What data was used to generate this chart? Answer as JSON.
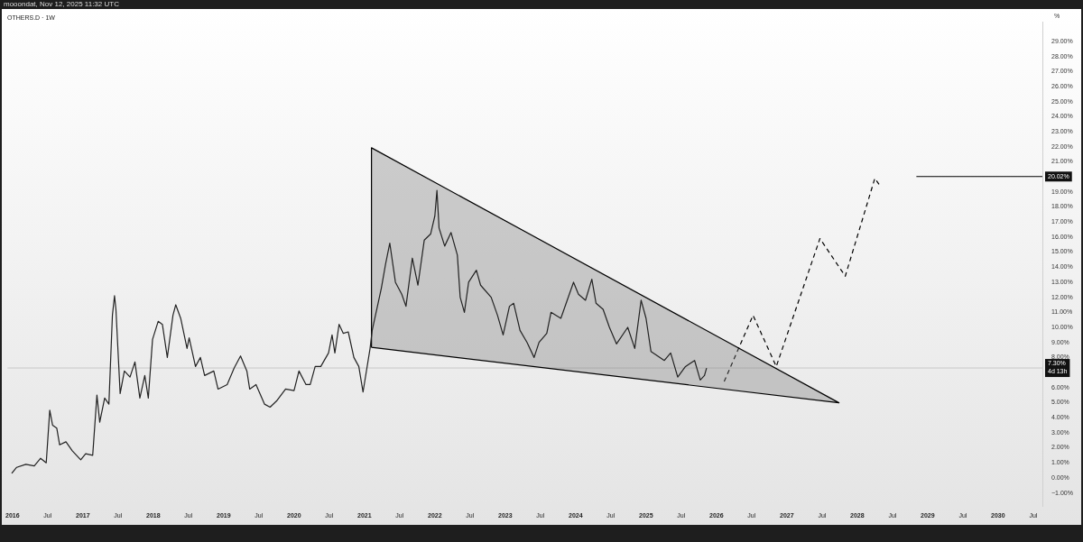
{
  "chart_data": {
    "type": "line",
    "title": "OTHERS.D · 1W",
    "ylabel": "%",
    "annotations": [
      "mooondat, Nov 12, 2025 11:32 UTC",
      {
        "text": "20.02%",
        "x": 2030.63,
        "y": 20.02
      }
    ],
    "xlim": [
      2015.93,
      2030.63
    ],
    "xticks": [
      {
        "value": 2016,
        "label": "2016"
      },
      {
        "value": 2016.5,
        "label": "Jul"
      },
      {
        "value": 2017,
        "label": "2017"
      },
      {
        "value": 2017.5,
        "label": "Jul"
      },
      {
        "value": 2018,
        "label": "2018"
      },
      {
        "value": 2018.5,
        "label": "Jul"
      },
      {
        "value": 2019,
        "label": "2019"
      },
      {
        "value": 2019.5,
        "label": "Jul"
      },
      {
        "value": 2020,
        "label": "2020"
      },
      {
        "value": 2020.5,
        "label": "Jul"
      },
      {
        "value": 2021,
        "label": "2021"
      },
      {
        "value": 2021.5,
        "label": "Jul"
      },
      {
        "value": 2022,
        "label": "2022"
      },
      {
        "value": 2022.5,
        "label": "Jul"
      },
      {
        "value": 2023,
        "label": "2023"
      },
      {
        "value": 2023.5,
        "label": "Jul"
      },
      {
        "value": 2024,
        "label": "2024"
      },
      {
        "value": 2024.5,
        "label": "Jul"
      },
      {
        "value": 2025,
        "label": "2025"
      },
      {
        "value": 2025.5,
        "label": "Jul"
      },
      {
        "value": 2026,
        "label": "2026"
      },
      {
        "value": 2026.5,
        "label": "Jul"
      },
      {
        "value": 2027,
        "label": "2027"
      },
      {
        "value": 2027.5,
        "label": "Jul"
      },
      {
        "value": 2028,
        "label": "2028"
      },
      {
        "value": 2028.5,
        "label": "Jul"
      },
      {
        "value": 2029,
        "label": "2029"
      },
      {
        "value": 2029.5,
        "label": "Jul"
      },
      {
        "value": 2030,
        "label": "2030"
      },
      {
        "value": 2030.5,
        "label": "Jul"
      }
    ],
    "ylim": [
      -1.9,
      30.3
    ],
    "yticks": [
      {
        "value": -1,
        "label": "−1.00%"
      },
      {
        "value": 0,
        "label": "0.00%"
      },
      {
        "value": 1,
        "label": "1.00%"
      },
      {
        "value": 2,
        "label": "2.00%"
      },
      {
        "value": 3,
        "label": "3.00%"
      },
      {
        "value": 4,
        "label": "4.00%"
      },
      {
        "value": 5,
        "label": "5.00%"
      },
      {
        "value": 6,
        "label": "6.00%"
      },
      {
        "value": 8,
        "label": "8.00%"
      },
      {
        "value": 9,
        "label": "9.00%"
      },
      {
        "value": 10,
        "label": "10.00%"
      },
      {
        "value": 11,
        "label": "11.00%"
      },
      {
        "value": 12,
        "label": "12.00%"
      },
      {
        "value": 13,
        "label": "13.00%"
      },
      {
        "value": 14,
        "label": "14.00%"
      },
      {
        "value": 15,
        "label": "15.00%"
      },
      {
        "value": 16,
        "label": "16.00%"
      },
      {
        "value": 17,
        "label": "17.00%"
      },
      {
        "value": 18,
        "label": "18.00%"
      },
      {
        "value": 19,
        "label": "19.00%"
      },
      {
        "value": 21,
        "label": "21.00%"
      },
      {
        "value": 22,
        "label": "22.00%"
      },
      {
        "value": 23,
        "label": "23.00%"
      },
      {
        "value": 24,
        "label": "24.00%"
      },
      {
        "value": 25,
        "label": "25.00%"
      },
      {
        "value": 26,
        "label": "26.00%"
      },
      {
        "value": 27,
        "label": "27.00%"
      },
      {
        "value": 28,
        "label": "28.00%"
      },
      {
        "value": 29,
        "label": "29.00%"
      }
    ],
    "grid": false,
    "legend": false,
    "marker": "none",
    "ref_lines": [
      {
        "axis": "y",
        "value": 7.3,
        "label": "7.30%\n4d 13h",
        "color": "#c8c8c8"
      }
    ],
    "series": [
      {
        "color": "#222222",
        "x": [
          2015.99,
          2016.06,
          2016.19,
          2016.31,
          2016.4,
          2016.48,
          2016.53,
          2016.57,
          2016.63,
          2016.67,
          2016.76,
          2016.85,
          2016.97,
          2017.04,
          2017.14,
          2017.2,
          2017.24,
          2017.31,
          2017.37,
          2017.42,
          2017.45,
          2017.47,
          2017.53,
          2017.59,
          2017.67,
          2017.74,
          2017.81,
          2017.88,
          2017.93,
          2017.99,
          2018.07,
          2018.13,
          2018.2,
          2018.28,
          2018.32,
          2018.39,
          2018.48,
          2018.51,
          2018.6,
          2018.67,
          2018.73,
          2018.86,
          2018.92,
          2019.05,
          2019.15,
          2019.24,
          2019.33,
          2019.37,
          2019.46,
          2019.58,
          2019.66,
          2019.75,
          2019.88,
          2020.0,
          2020.07,
          2020.17,
          2020.23,
          2020.3,
          2020.38,
          2020.49,
          2020.54,
          2020.58,
          2020.64,
          2020.7,
          2020.77,
          2020.85,
          2020.92,
          2020.98,
          2021.08,
          2021.11,
          2021.24,
          2021.3,
          2021.36,
          2021.44,
          2021.53,
          2021.59,
          2021.68,
          2021.76,
          2021.85,
          2021.94,
          2022.0,
          2022.03,
          2022.06,
          2022.14,
          2022.23,
          2022.32,
          2022.36,
          2022.42,
          2022.48,
          2022.59,
          2022.65,
          2022.8,
          2022.89,
          2022.97,
          2023.06,
          2023.12,
          2023.21,
          2023.31,
          2023.41,
          2023.48,
          2023.59,
          2023.65,
          2023.79,
          2023.88,
          2023.97,
          2024.04,
          2024.14,
          2024.23,
          2024.29,
          2024.39,
          2024.48,
          2024.58,
          2024.74,
          2024.84,
          2024.93,
          2025.0,
          2025.07,
          2025.26,
          2025.35,
          2025.45,
          2025.56,
          2025.69,
          2025.77,
          2025.83,
          2025.86
        ],
        "values": [
          0.3,
          0.7,
          0.9,
          0.8,
          1.3,
          1.0,
          4.5,
          3.5,
          3.3,
          2.2,
          2.4,
          1.8,
          1.2,
          1.6,
          1.5,
          5.5,
          3.7,
          5.3,
          4.9,
          10.8,
          12.1,
          11.2,
          5.6,
          7.1,
          6.7,
          7.7,
          5.3,
          6.8,
          5.3,
          9.2,
          10.4,
          10.2,
          8.0,
          10.8,
          11.5,
          10.6,
          8.6,
          9.3,
          7.4,
          8.0,
          6.8,
          7.1,
          5.9,
          6.2,
          7.3,
          8.1,
          7.1,
          5.9,
          6.2,
          4.9,
          4.7,
          5.1,
          5.9,
          5.8,
          7.1,
          6.2,
          6.2,
          7.4,
          7.4,
          8.3,
          9.5,
          8.3,
          10.2,
          9.6,
          9.7,
          8.0,
          7.4,
          5.7,
          8.6,
          9.8,
          12.6,
          14.2,
          15.6,
          13.0,
          12.2,
          11.4,
          14.6,
          12.8,
          15.8,
          16.2,
          17.4,
          19.1,
          16.6,
          15.4,
          16.3,
          14.8,
          12.0,
          11.0,
          13.0,
          13.8,
          12.8,
          12.0,
          10.8,
          9.5,
          11.4,
          11.6,
          9.8,
          9.0,
          8.0,
          9.0,
          9.6,
          11.0,
          10.6,
          11.8,
          13.0,
          12.2,
          11.8,
          13.2,
          11.6,
          11.2,
          10.0,
          8.9,
          10.0,
          8.6,
          11.8,
          10.6,
          8.4,
          7.8,
          8.3,
          6.7,
          7.4,
          7.8,
          6.5,
          6.8,
          7.3
        ]
      },
      {
        "type": "area",
        "color": "#000000",
        "x": [
          2021.1,
          2021.1,
          2027.74,
          2021.1
        ],
        "values": [
          8.67,
          21.93,
          4.99,
          8.67
        ]
      },
      {
        "color": "#000000",
        "line_style": "dashed",
        "x": [
          2026.11,
          2026.52,
          2026.85,
          2027.47,
          2027.83,
          2028.25,
          2028.31
        ],
        "values": [
          6.4,
          10.8,
          7.4,
          15.9,
          13.4,
          19.9,
          19.5
        ]
      },
      {
        "color": "#000000",
        "x": [
          2028.84,
          2030.63
        ],
        "values": [
          20.02,
          20.02
        ]
      }
    ]
  }
}
